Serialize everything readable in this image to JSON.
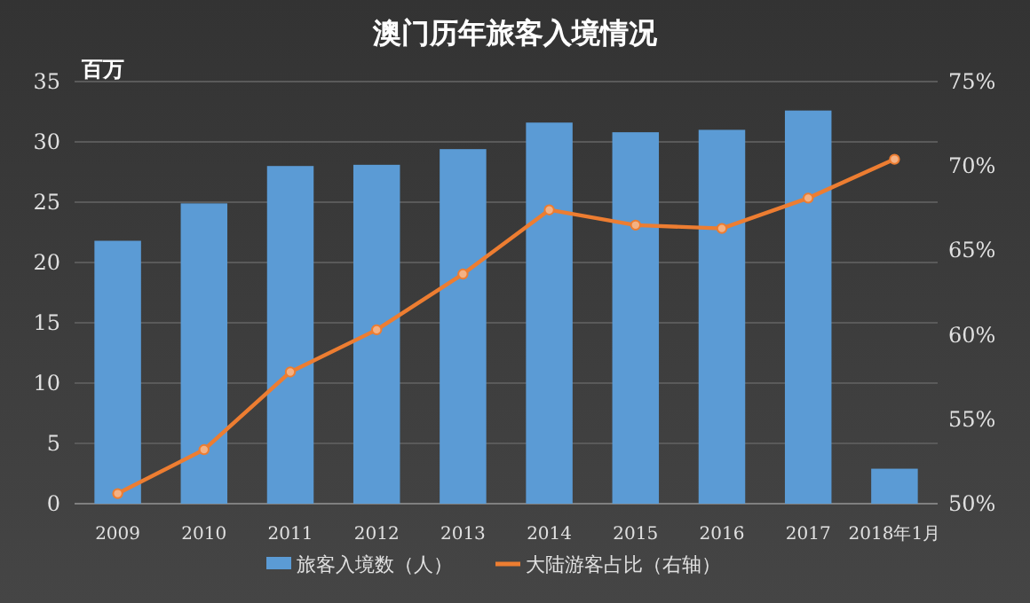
{
  "chart_data": {
    "type": "bar",
    "title": "澳门历年旅客入境情况",
    "ylabel": "百万",
    "categories": [
      "2009",
      "2010",
      "2011",
      "2012",
      "2013",
      "2014",
      "2015",
      "2016",
      "2017",
      "2018年1月"
    ],
    "series": [
      {
        "name": "旅客入境数（人）",
        "color": "#5b9bd5",
        "values": [
          21.8,
          24.9,
          28.0,
          28.1,
          29.4,
          31.6,
          30.8,
          31.0,
          32.6,
          2.9
        ]
      },
      {
        "name": "大陆游客占比（右轴）",
        "type": "line",
        "axis": "y2",
        "color": "#ed7d31",
        "marker": "circle",
        "values": [
          50.6,
          53.2,
          57.8,
          60.3,
          63.6,
          67.4,
          66.5,
          66.3,
          68.1,
          70.4
        ]
      }
    ],
    "ylim": [
      0,
      35
    ],
    "yticks": [
      0,
      5,
      10,
      15,
      20,
      25,
      30,
      35
    ],
    "y2lim": [
      50,
      75
    ],
    "y2ticks": [
      {
        "value": 50,
        "label": "50%"
      },
      {
        "value": 55,
        "label": "55%"
      },
      {
        "value": 60,
        "label": "60%"
      },
      {
        "value": 65,
        "label": "65%"
      },
      {
        "value": 70,
        "label": "70%"
      },
      {
        "value": 75,
        "label": "75%"
      }
    ],
    "grid": "y",
    "legend": "bottom"
  }
}
